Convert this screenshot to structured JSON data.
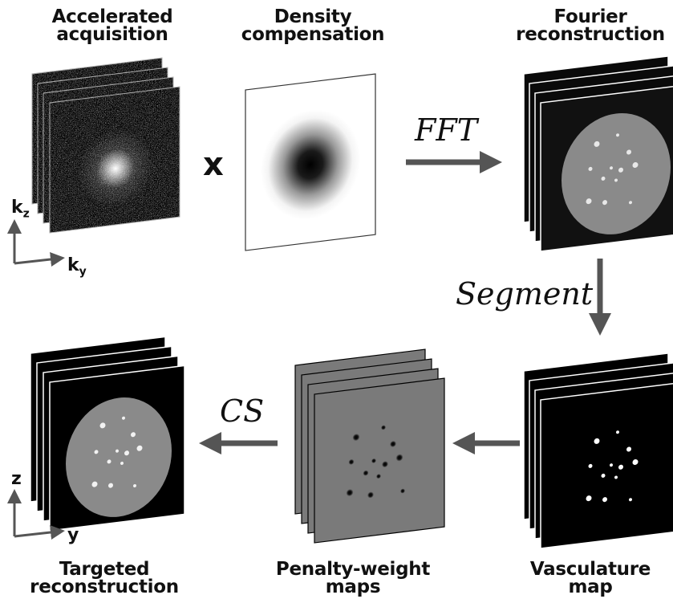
{
  "panels": {
    "acquisition": {
      "line1": "Accelerated",
      "line2": "acquisition"
    },
    "density": {
      "line1": "Density",
      "line2": "compensation"
    },
    "fourier": {
      "line1": "Fourier",
      "line2": "reconstruction"
    },
    "vasculature": {
      "line1": "Vasculature",
      "line2": "map"
    },
    "penalty": {
      "line1": "Penalty-weight",
      "line2": "maps"
    },
    "targeted": {
      "line1": "Targeted",
      "line2": "reconstruction"
    }
  },
  "operations": {
    "multiply": "x",
    "fft": "FFT",
    "segment": "Segment",
    "cs": "CS"
  },
  "axes": {
    "top": {
      "vertical": "k",
      "vertical_sub": "z",
      "horizontal": "k",
      "horizontal_sub": "y"
    },
    "bottom": {
      "vertical": "z",
      "horizontal": "y"
    }
  },
  "colors": {
    "arrow": "#555555",
    "frame_dark": "#000000",
    "penalty_gray": "#7a7a7a",
    "phantom_gray": "#8a8a8a"
  }
}
